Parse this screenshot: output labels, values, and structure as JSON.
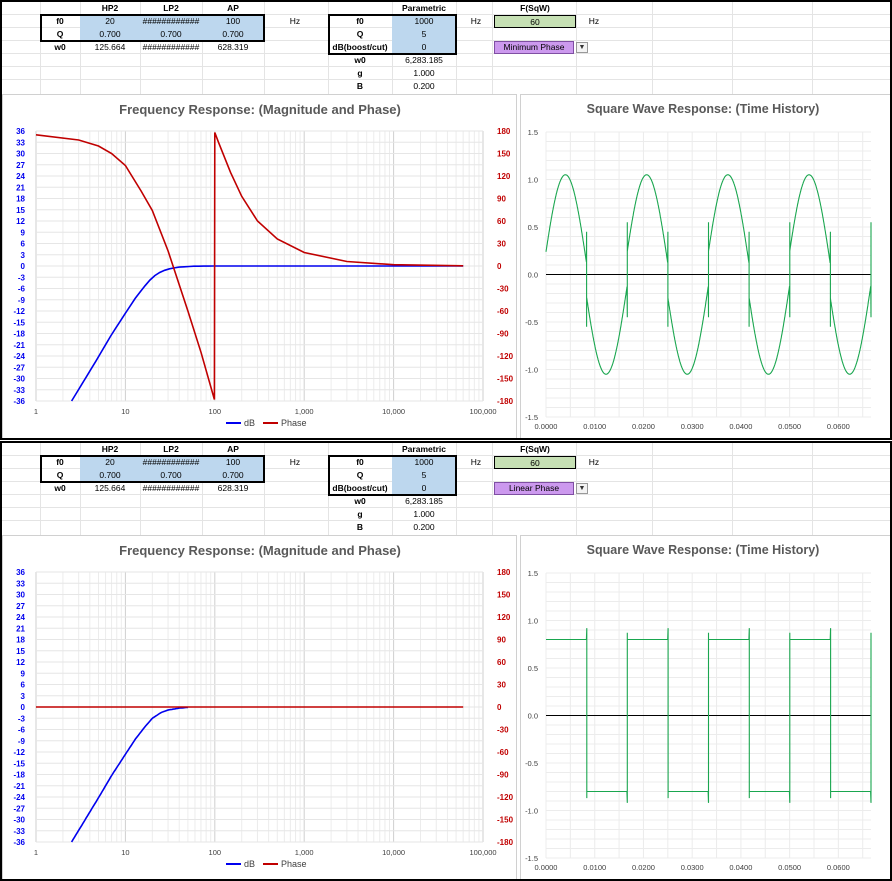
{
  "panels": [
    {
      "filter_table": {
        "headers": [
          "HP2",
          "LP2",
          "AP"
        ],
        "rows": [
          {
            "label": "f0",
            "values": [
              "20",
              "############",
              "100"
            ],
            "unit": "Hz"
          },
          {
            "label": "Q",
            "values": [
              "0.700",
              "0.700",
              "0.700"
            ]
          },
          {
            "label": "w0",
            "values": [
              "125.664",
              "############",
              "628.319"
            ]
          }
        ]
      },
      "parametric": {
        "header": "Parametric",
        "rows": [
          {
            "label": "f0",
            "value": "1000",
            "unit": "Hz"
          },
          {
            "label": "Q",
            "value": "5"
          },
          {
            "label": "dB(boost/cut)",
            "value": "0"
          },
          {
            "label": "w0",
            "value": "6,283.185"
          },
          {
            "label": "g",
            "value": "1.000"
          },
          {
            "label": "B",
            "value": "0.200"
          }
        ]
      },
      "sqw": {
        "header": "F(SqW)",
        "value": "60",
        "unit": "Hz"
      },
      "phase_mode": {
        "selected": "Minimum Phase"
      },
      "freq_chart": {
        "title": "Frequency Response: (Magnitude and Phase)",
        "left_ticks": [
          "36",
          "33",
          "30",
          "27",
          "24",
          "21",
          "18",
          "15",
          "12",
          "9",
          "6",
          "3",
          "0",
          "-3",
          "-6",
          "-9",
          "-12",
          "-15",
          "-18",
          "-21",
          "-24",
          "-27",
          "-30",
          "-33",
          "-36"
        ],
        "right_ticks": [
          "180",
          "150",
          "120",
          "90",
          "60",
          "30",
          "0",
          "-30",
          "-60",
          "-90",
          "-120",
          "-150",
          "-180"
        ],
        "x_ticks": [
          "1",
          "10",
          "100",
          "1,000",
          "10,000",
          "100,000"
        ],
        "legend": [
          "dB",
          "Phase"
        ],
        "colors": {
          "dB": "#0000ee",
          "Phase": "#c00000",
          "left_axis": "#0000ee",
          "right_axis": "#c00000"
        }
      },
      "chart_data": {
        "type": "line",
        "x_scale": "log",
        "xlim": [
          1,
          100000
        ],
        "ylim": [
          -36,
          36
        ],
        "y2lim": [
          -180,
          180
        ],
        "series": [
          {
            "name": "dB",
            "axis": "left",
            "x": [
              2.5,
              3,
              4,
              5,
              7,
              10,
              13,
              16,
              20,
              25,
              30,
              40,
              60,
              100,
              1000,
              60000
            ],
            "values": [
              -36,
              -32.9,
              -28,
              -24.2,
              -18.3,
              -12.6,
              -8.5,
              -5.7,
              -3,
              -1.5,
              -0.8,
              -0.3,
              -0.05,
              0,
              0,
              0
            ]
          },
          {
            "name": "Phase",
            "axis": "right",
            "x": [
              1,
              3,
              5,
              7,
              10,
              15,
              20,
              30,
              50,
              70,
              99,
              100,
              110,
              150,
              200,
              300,
              500,
              1000,
              3000,
              10000,
              60000
            ],
            "values": [
              175,
              168,
              160,
              150,
              134,
              100,
              74,
              20,
              -60,
              -115,
              -178,
              178,
              165,
              125,
              93,
              60,
              36,
              18,
              6,
              1.8,
              0.3
            ]
          }
        ]
      },
      "time_chart": {
        "title": "Square Wave Response: (Time History)",
        "y_ticks": [
          "1.5",
          "1.0",
          "0.5",
          "0.0",
          "-0.5",
          "-1.0",
          "-1.5"
        ],
        "x_ticks": [
          "0.0000",
          "0.0100",
          "0.0200",
          "0.0300",
          "0.0400",
          "0.0500",
          "0.0600"
        ],
        "color": "#1aa64f"
      },
      "time_data": {
        "type": "line",
        "xlim": [
          0,
          0.0667
        ],
        "ylim": [
          -1.5,
          1.5
        ],
        "period": 0.016667,
        "mode": "minimum"
      }
    },
    {
      "filter_table": {
        "headers": [
          "HP2",
          "LP2",
          "AP"
        ],
        "rows": [
          {
            "label": "f0",
            "values": [
              "20",
              "############",
              "100"
            ],
            "unit": "Hz"
          },
          {
            "label": "Q",
            "values": [
              "0.700",
              "0.700",
              "0.700"
            ]
          },
          {
            "label": "w0",
            "values": [
              "125.664",
              "############",
              "628.319"
            ]
          }
        ]
      },
      "parametric": {
        "header": "Parametric",
        "rows": [
          {
            "label": "f0",
            "value": "1000",
            "unit": "Hz"
          },
          {
            "label": "Q",
            "value": "5"
          },
          {
            "label": "dB(boost/cut)",
            "value": "0"
          },
          {
            "label": "w0",
            "value": "6,283.185"
          },
          {
            "label": "g",
            "value": "1.000"
          },
          {
            "label": "B",
            "value": "0.200"
          }
        ]
      },
      "sqw": {
        "header": "F(SqW)",
        "value": "60",
        "unit": "Hz"
      },
      "phase_mode": {
        "selected": "Linear Phase"
      },
      "freq_chart": {
        "title": "Frequency Response: (Magnitude and Phase)",
        "left_ticks": [
          "36",
          "33",
          "30",
          "27",
          "24",
          "21",
          "18",
          "15",
          "12",
          "9",
          "6",
          "3",
          "0",
          "-3",
          "-6",
          "-9",
          "-12",
          "-15",
          "-18",
          "-21",
          "-24",
          "-27",
          "-30",
          "-33",
          "-36"
        ],
        "right_ticks": [
          "180",
          "150",
          "120",
          "90",
          "60",
          "30",
          "0",
          "-30",
          "-60",
          "-90",
          "-120",
          "-150",
          "-180"
        ],
        "x_ticks": [
          "1",
          "10",
          "100",
          "1,000",
          "10,000",
          "100,000"
        ],
        "legend": [
          "dB",
          "Phase"
        ],
        "colors": {
          "dB": "#0000ee",
          "Phase": "#c00000",
          "left_axis": "#0000ee",
          "right_axis": "#c00000"
        }
      },
      "chart_data": {
        "type": "line",
        "x_scale": "log",
        "xlim": [
          1,
          100000
        ],
        "ylim": [
          -36,
          36
        ],
        "y2lim": [
          -180,
          180
        ],
        "series": [
          {
            "name": "dB",
            "axis": "left",
            "x": [
              2.5,
              3,
              4,
              5,
              7,
              10,
              13,
              16,
              20,
              25,
              30,
              40,
              50
            ],
            "values": [
              -36,
              -32.9,
              -28,
              -24.2,
              -18.3,
              -12.6,
              -8.5,
              -5.7,
              -3,
              -1.5,
              -0.8,
              -0.3,
              -0.1
            ]
          },
          {
            "name": "Phase",
            "axis": "right",
            "x": [
              1,
              60000
            ],
            "values": [
              0,
              0
            ]
          }
        ]
      },
      "time_chart": {
        "title": "Square Wave Response: (Time History)",
        "y_ticks": [
          "1.5",
          "1.0",
          "0.5",
          "0.0",
          "-0.5",
          "-1.0",
          "-1.5"
        ],
        "x_ticks": [
          "0.0000",
          "0.0100",
          "0.0200",
          "0.0300",
          "0.0400",
          "0.0500",
          "0.0600"
        ],
        "color": "#1aa64f"
      },
      "time_data": {
        "type": "line",
        "xlim": [
          0,
          0.0667
        ],
        "ylim": [
          -1.5,
          1.5
        ],
        "period": 0.016667,
        "mode": "linear"
      }
    }
  ]
}
